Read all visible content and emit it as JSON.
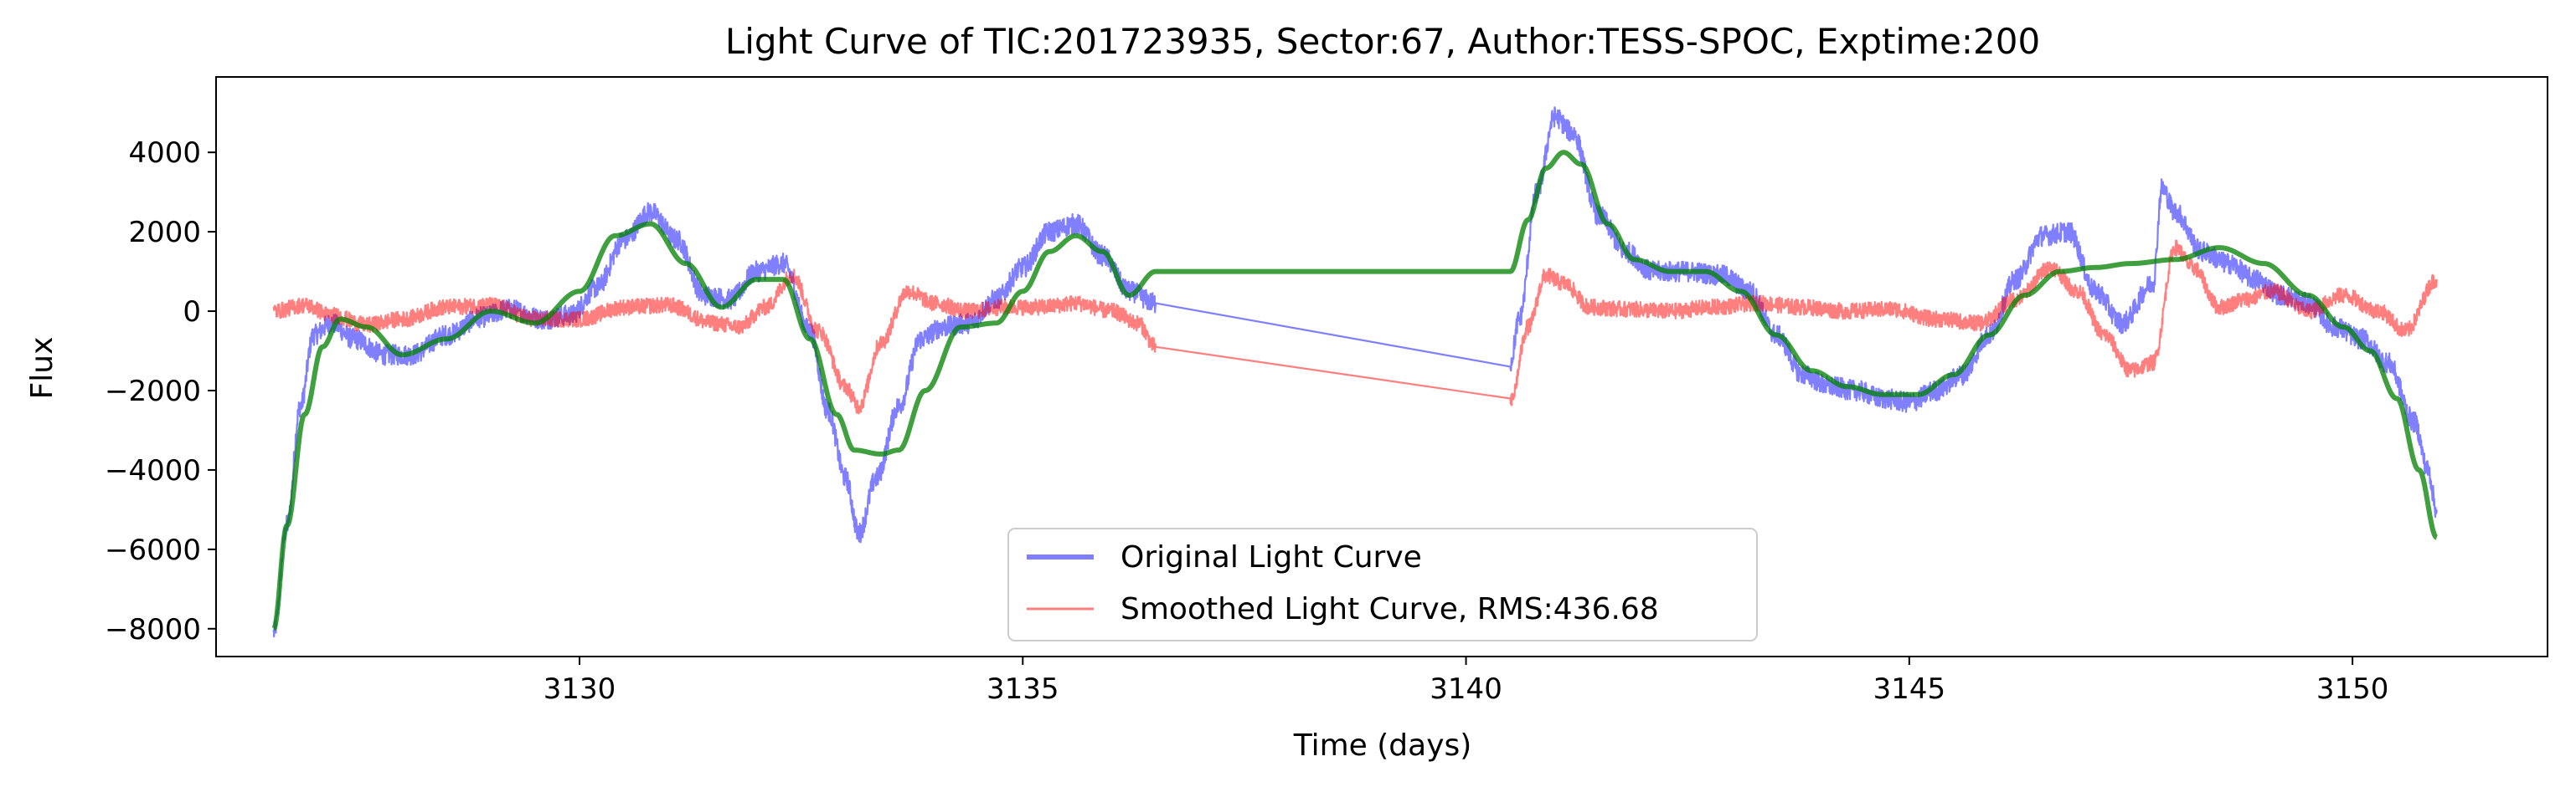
{
  "chart_data": {
    "type": "line",
    "title": "Light Curve of TIC:201723935, Sector:67, Author:TESS-SPOC, Exptime:200",
    "xlabel": "Time (days)",
    "ylabel": "Flux",
    "xlim": [
      3125.9,
      3152.2
    ],
    "ylim": [
      -8700,
      5900
    ],
    "xticks": [
      3130,
      3135,
      3140,
      3145,
      3150
    ],
    "xtick_labels": [
      "3130",
      "3135",
      "3140",
      "3145",
      "3150"
    ],
    "yticks": [
      -8000,
      -6000,
      -4000,
      -2000,
      0,
      2000,
      4000
    ],
    "ytick_labels": [
      "−8000",
      "−6000",
      "−4000",
      "−2000",
      "0",
      "2000",
      "4000"
    ],
    "grid": false,
    "legend_position": "lower center",
    "series": [
      {
        "name": "Original Light Curve",
        "role": "original",
        "color": "#0000ff",
        "opacity": 0.5,
        "noise": 260,
        "x": [
          3126.55,
          3126.7,
          3126.85,
          3127.0,
          3127.2,
          3127.45,
          3127.8,
          3128.1,
          3128.5,
          3128.9,
          3129.2,
          3129.6,
          3129.9,
          3130.2,
          3130.5,
          3130.8,
          3131.1,
          3131.4,
          3131.7,
          3132.0,
          3132.3,
          3132.6,
          3132.8,
          3133.0,
          3133.15,
          3133.35,
          3133.6,
          3133.85,
          3134.1,
          3134.4,
          3134.7,
          3135.0,
          3135.3,
          3135.6,
          3135.9,
          3136.2,
          3136.5,
          3140.5,
          3140.6,
          3140.8,
          3141.0,
          3141.2,
          3141.5,
          3141.8,
          3142.1,
          3142.5,
          3142.9,
          3143.2,
          3143.5,
          3143.8,
          3144.1,
          3144.4,
          3144.7,
          3145.0,
          3145.3,
          3145.6,
          3145.9,
          3146.2,
          3146.5,
          3146.8,
          3147.1,
          3147.4,
          3147.75,
          3147.85,
          3148.0,
          3148.3,
          3148.6,
          3148.9,
          3149.2,
          3149.5,
          3149.8,
          3150.1,
          3150.4,
          3150.7,
          3150.85,
          3150.95
        ],
        "values": [
          -8100,
          -5400,
          -2400,
          -600,
          -300,
          -700,
          -1100,
          -1100,
          -600,
          -150,
          50,
          -200,
          -100,
          600,
          1800,
          2500,
          1800,
          400,
          300,
          1000,
          1200,
          -500,
          -2500,
          -4200,
          -5600,
          -4200,
          -2400,
          -700,
          -400,
          -300,
          300,
          1100,
          2000,
          2200,
          1400,
          500,
          200,
          -1300,
          -200,
          3000,
          4900,
          4500,
          2400,
          1500,
          1000,
          1000,
          900,
          500,
          -600,
          -1600,
          -1900,
          -2000,
          -2200,
          -2300,
          -2000,
          -1600,
          -600,
          800,
          1900,
          2000,
          500,
          -300,
          700,
          3100,
          2500,
          1500,
          1200,
          800,
          400,
          200,
          -400,
          -700,
          -1300,
          -2800,
          -4000,
          -5000
        ]
      },
      {
        "name": "Smoothed Light Curve, RMS:436.68",
        "role": "residual",
        "color": "#ff0000",
        "opacity": 0.5,
        "noise": 200,
        "x": [
          3126.55,
          3126.9,
          3127.2,
          3127.6,
          3128.0,
          3128.5,
          3129.0,
          3129.5,
          3130.0,
          3130.5,
          3131.0,
          3131.5,
          3131.8,
          3132.1,
          3132.4,
          3132.7,
          3133.0,
          3133.15,
          3133.4,
          3133.7,
          3134.0,
          3134.4,
          3134.8,
          3135.2,
          3135.6,
          3136.0,
          3136.3,
          3136.5,
          3140.5,
          3140.7,
          3140.9,
          3141.1,
          3141.4,
          3141.8,
          3142.3,
          3142.8,
          3143.3,
          3143.8,
          3144.3,
          3144.8,
          3145.3,
          3145.8,
          3146.2,
          3146.6,
          3146.9,
          3147.2,
          3147.5,
          3147.75,
          3148.0,
          3148.2,
          3148.5,
          3148.8,
          3149.1,
          3149.5,
          3149.9,
          3150.3,
          3150.6,
          3150.95
        ],
        "values": [
          0,
          150,
          -100,
          -350,
          -200,
          100,
          150,
          -200,
          -200,
          100,
          150,
          -300,
          -400,
          100,
          900,
          -500,
          -1900,
          -2400,
          -800,
          500,
          200,
          0,
          100,
          100,
          200,
          0,
          -300,
          -900,
          -2300,
          -400,
          900,
          700,
          100,
          50,
          0,
          100,
          200,
          100,
          0,
          50,
          -200,
          -300,
          300,
          1100,
          500,
          -600,
          -1500,
          -1300,
          1600,
          1100,
          100,
          300,
          500,
          0,
          400,
          0,
          -500,
          800
        ]
      },
      {
        "name": "",
        "role": "trend",
        "color": "#008000",
        "opacity": 0.75,
        "noise": 0,
        "x": [
          3126.55,
          3126.7,
          3126.9,
          3127.1,
          3127.3,
          3127.6,
          3128.0,
          3128.5,
          3129.0,
          3129.5,
          3130.0,
          3130.4,
          3130.8,
          3131.2,
          3131.6,
          3132.0,
          3132.3,
          3132.6,
          3132.9,
          3133.1,
          3133.4,
          3133.6,
          3133.9,
          3134.3,
          3134.7,
          3135.0,
          3135.3,
          3135.6,
          3135.9,
          3136.2,
          3136.5,
          3140.5,
          3140.7,
          3140.9,
          3141.1,
          3141.3,
          3141.6,
          3141.9,
          3142.3,
          3142.7,
          3143.1,
          3143.5,
          3143.9,
          3144.3,
          3144.7,
          3145.1,
          3145.5,
          3145.9,
          3146.3,
          3146.7,
          3147.1,
          3147.5,
          3148.0,
          3148.5,
          3149.0,
          3149.5,
          3149.9,
          3150.2,
          3150.5,
          3150.75,
          3150.95
        ],
        "values": [
          -8000,
          -5400,
          -2600,
          -900,
          -200,
          -400,
          -1100,
          -700,
          0,
          -300,
          500,
          1900,
          2200,
          1200,
          100,
          800,
          800,
          -700,
          -2600,
          -3500,
          -3600,
          -3500,
          -2000,
          -400,
          -300,
          500,
          1500,
          1900,
          1500,
          400,
          1000,
          1000,
          2300,
          3600,
          4000,
          3700,
          2200,
          1300,
          1000,
          1000,
          500,
          -600,
          -1500,
          -1900,
          -2100,
          -2100,
          -1600,
          -600,
          400,
          1000,
          1100,
          1200,
          1300,
          1600,
          1200,
          400,
          -400,
          -1000,
          -2200,
          -4000,
          -5700
        ]
      }
    ]
  }
}
